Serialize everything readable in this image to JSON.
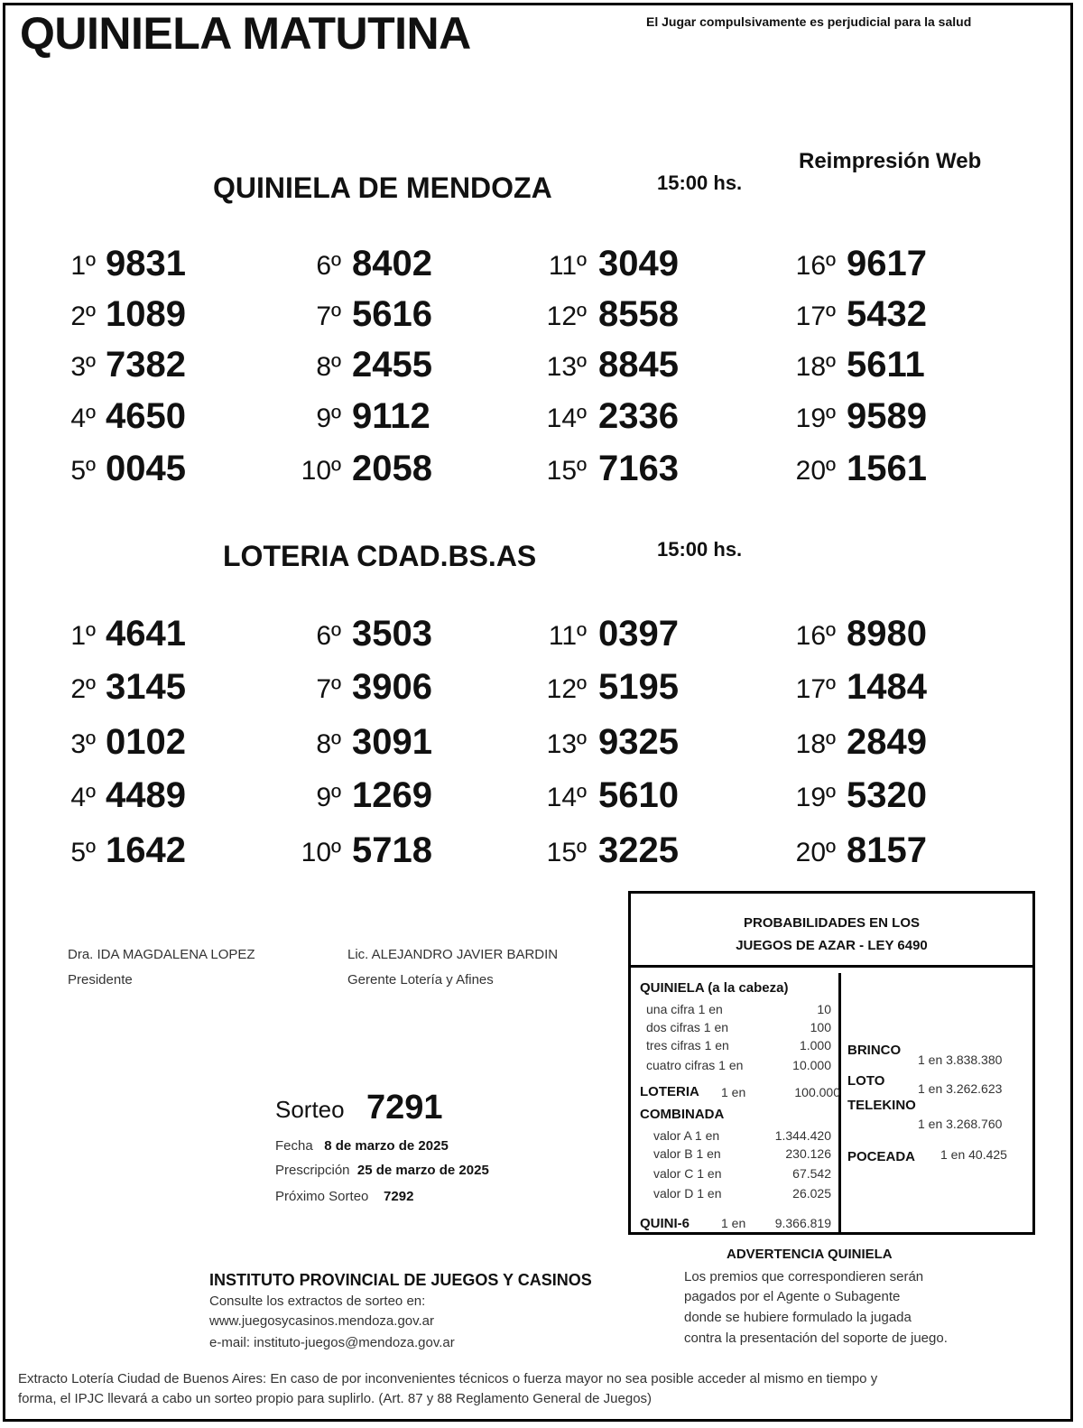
{
  "header": {
    "title": "QUINIELA MATUTINA",
    "warning": "El Jugar compulsivamente es perjudicial para la salud",
    "reprint": "Reimpresión Web"
  },
  "draws": [
    {
      "name": "QUINIELA  DE MENDOZA",
      "time": "15:00 hs.",
      "results": [
        {
          "pos": "1º",
          "num": "9831"
        },
        {
          "pos": "2º",
          "num": "1089"
        },
        {
          "pos": "3º",
          "num": "7382"
        },
        {
          "pos": "4º",
          "num": "4650"
        },
        {
          "pos": "5º",
          "num": "0045"
        },
        {
          "pos": "6º",
          "num": "8402"
        },
        {
          "pos": "7º",
          "num": "5616"
        },
        {
          "pos": "8º",
          "num": "2455"
        },
        {
          "pos": "9º",
          "num": "9112"
        },
        {
          "pos": "10º",
          "num": "2058"
        },
        {
          "pos": "11º",
          "num": "3049"
        },
        {
          "pos": "12º",
          "num": "8558"
        },
        {
          "pos": "13º",
          "num": "8845"
        },
        {
          "pos": "14º",
          "num": "2336"
        },
        {
          "pos": "15º",
          "num": "7163"
        },
        {
          "pos": "16º",
          "num": "9617"
        },
        {
          "pos": "17º",
          "num": "5432"
        },
        {
          "pos": "18º",
          "num": "5611"
        },
        {
          "pos": "19º",
          "num": "9589"
        },
        {
          "pos": "20º",
          "num": "1561"
        }
      ]
    },
    {
      "name": "LOTERIA CDAD.BS.AS",
      "time": "15:00 hs.",
      "results": [
        {
          "pos": "1º",
          "num": "4641"
        },
        {
          "pos": "2º",
          "num": "3145"
        },
        {
          "pos": "3º",
          "num": "0102"
        },
        {
          "pos": "4º",
          "num": "4489"
        },
        {
          "pos": "5º",
          "num": "1642"
        },
        {
          "pos": "6º",
          "num": "3503"
        },
        {
          "pos": "7º",
          "num": "3906"
        },
        {
          "pos": "8º",
          "num": "3091"
        },
        {
          "pos": "9º",
          "num": "1269"
        },
        {
          "pos": "10º",
          "num": "5718"
        },
        {
          "pos": "11º",
          "num": "0397"
        },
        {
          "pos": "12º",
          "num": "5195"
        },
        {
          "pos": "13º",
          "num": "9325"
        },
        {
          "pos": "14º",
          "num": "5610"
        },
        {
          "pos": "15º",
          "num": "3225"
        },
        {
          "pos": "16º",
          "num": "8980"
        },
        {
          "pos": "17º",
          "num": "1484"
        },
        {
          "pos": "18º",
          "num": "2849"
        },
        {
          "pos": "19º",
          "num": "5320"
        },
        {
          "pos": "20º",
          "num": "8157"
        }
      ]
    }
  ],
  "signatures": [
    {
      "name": "Dra. IDA MAGDALENA LOPEZ",
      "role": "Presidente"
    },
    {
      "name": "Lic. ALEJANDRO JAVIER BARDIN",
      "role": "Gerente Lotería y Afines"
    }
  ],
  "sorteo": {
    "label": "Sorteo",
    "number": "7291",
    "fecha_label": "Fecha",
    "fecha": "8 de marzo de 2025",
    "prescripcion_label": "Prescripción",
    "prescripcion": "25 de marzo de 2025",
    "proximo_label": "Próximo Sorteo",
    "proximo": "7292"
  },
  "institute": {
    "name": "INSTITUTO PROVINCIAL DE JUEGOS Y CASINOS",
    "consult": "Consulte los extractos de sorteo en:",
    "web": "www.juegosycasinos.mendoza.gov.ar",
    "email": "e-mail:  instituto-juegos@mendoza.gov.ar"
  },
  "probabilities": {
    "title1": "PROBABILIDADES EN LOS",
    "title2": "JUEGOS DE AZAR - LEY 6490",
    "quiniela_title": "QUINIELA (a la cabeza)",
    "quiniela": [
      {
        "label": "una cifra  1 en",
        "value": "10"
      },
      {
        "label": "dos cifras 1 en",
        "value": "100"
      },
      {
        "label": "tres cifras 1 en",
        "value": "1.000"
      },
      {
        "label": "cuatro cifras 1 en",
        "value": "10.000"
      }
    ],
    "loteria": {
      "label": "LOTERIA",
      "odds": "1 en",
      "value": "100.000"
    },
    "combinada_title": "COMBINADA",
    "combinada": [
      {
        "label": "valor A 1 en",
        "value": "1.344.420"
      },
      {
        "label": "valor B 1 en",
        "value": "230.126"
      },
      {
        "label": "valor C 1 en",
        "value": "67.542"
      },
      {
        "label": "valor D 1 en",
        "value": "26.025"
      }
    ],
    "quini6": {
      "label": "QUINI-6",
      "odds": "1 en",
      "value": "9.366.819"
    },
    "brinco": {
      "label": "BRINCO",
      "value": "1 en 3.838.380"
    },
    "loto": {
      "label": "LOTO",
      "value": "1 en 3.262.623"
    },
    "telekino": {
      "label": "TELEKINO",
      "value": "1 en 3.268.760"
    },
    "poceada": {
      "label": "POCEADA",
      "value": "1 en 40.425"
    }
  },
  "advertencia": {
    "title": "ADVERTENCIA QUINIELA",
    "lines": [
      "Los premios que correspondieren serán",
      "pagados por el Agente o Subagente",
      "donde se hubiere formulado la jugada",
      "contra la presentación del soporte de juego."
    ]
  },
  "footer": {
    "lines": [
      "Extracto Lotería Ciudad de Buenos Aires: En caso de por inconvenientes técnicos o fuerza mayor no sea posible acceder al mismo en tiempo y",
      "forma, el IPJC llevará a cabo un sorteo propio para suplirlo. (Art. 87 y 88 Reglamento General de Juegos)"
    ]
  }
}
